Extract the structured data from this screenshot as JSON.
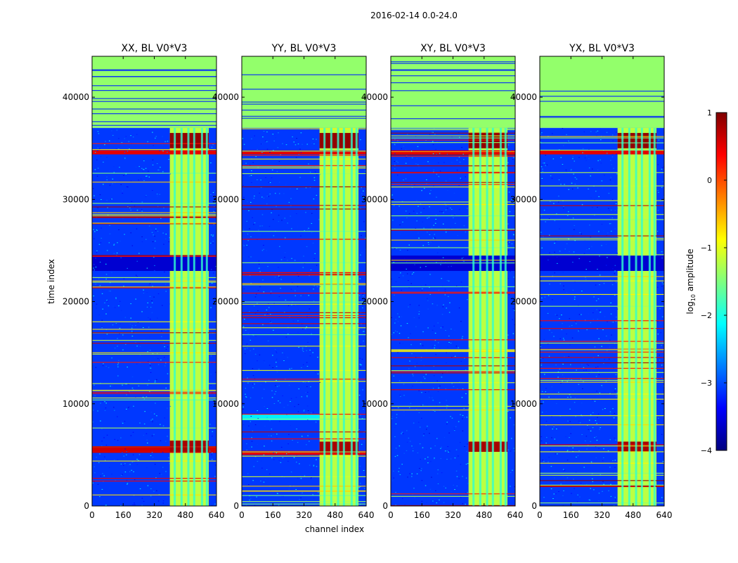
{
  "figure": {
    "suptitle": "2016-02-14 0.0-24.0",
    "xlabel": "channel index",
    "ylabel": "time index"
  },
  "colorbar": {
    "label": "log10 amplitude",
    "label_base": "log",
    "label_sub": "10",
    "label_rest": " amplitude",
    "min": -4,
    "max": 1,
    "ticks": [
      1,
      0,
      -1,
      -2,
      -3,
      -4
    ],
    "tick_labels": [
      "1",
      "0",
      "−1",
      "−2",
      "−3",
      "−4"
    ],
    "colormap": "jet",
    "colors": [
      "#00007f",
      "#0000ff",
      "#007fff",
      "#00ffff",
      "#7fff7f",
      "#ffff00",
      "#ff7f00",
      "#ff0000",
      "#7f0000"
    ]
  },
  "chart_data": [
    {
      "type": "heatmap",
      "title": "XX, BL V0*V3",
      "xlim": [
        0,
        640
      ],
      "ylim": [
        0,
        44000
      ],
      "xticks": [
        0,
        160,
        320,
        480,
        640
      ],
      "xtick_labels": [
        "0",
        "160",
        "320",
        "480",
        "640"
      ],
      "yticks": [
        0,
        10000,
        20000,
        30000,
        40000
      ],
      "ytick_labels": [
        "0",
        "10000",
        "20000",
        "30000",
        "40000"
      ],
      "value_range": [
        -4,
        1
      ],
      "regions": [
        {
          "channels": [
            0,
            640
          ],
          "times": [
            0,
            37000
          ],
          "level": -3.1
        },
        {
          "channels": [
            0,
            640
          ],
          "times": [
            37000,
            44000
          ],
          "level": -1.4
        },
        {
          "channels": [
            400,
            600
          ],
          "times": [
            0,
            37000
          ],
          "level": -1.2
        },
        {
          "channels": [
            0,
            640
          ],
          "times": [
            5200,
            5800
          ],
          "level": 0.6
        },
        {
          "channels": [
            400,
            600
          ],
          "times": [
            5300,
            6400
          ],
          "level": 0.8
        },
        {
          "channels": [
            400,
            600
          ],
          "times": [
            35000,
            36500
          ],
          "level": 0.9
        },
        {
          "channels": [
            0,
            640
          ],
          "times": [
            23000,
            24500
          ],
          "level": -3.6
        },
        {
          "channels": [
            0,
            640
          ],
          "times": [
            34400,
            34800
          ],
          "level": 0.5
        }
      ]
    },
    {
      "type": "heatmap",
      "title": "YY, BL V0*V3",
      "xlim": [
        0,
        640
      ],
      "ylim": [
        0,
        44000
      ],
      "xticks": [
        0,
        160,
        320,
        480,
        640
      ],
      "xtick_labels": [
        "0",
        "160",
        "320",
        "480",
        "640"
      ],
      "yticks": [
        0,
        10000,
        20000,
        30000,
        40000
      ],
      "ytick_labels": [
        "0",
        "10000",
        "20000",
        "30000",
        "40000"
      ],
      "value_range": [
        -4,
        1
      ],
      "regions": [
        {
          "channels": [
            0,
            640
          ],
          "times": [
            0,
            37000
          ],
          "level": -3.1
        },
        {
          "channels": [
            0,
            640
          ],
          "times": [
            37000,
            44000
          ],
          "level": -1.4
        },
        {
          "channels": [
            400,
            600
          ],
          "times": [
            0,
            37000
          ],
          "level": -1.2
        },
        {
          "channels": [
            0,
            640
          ],
          "times": [
            5000,
            5400
          ],
          "level": 0.5
        },
        {
          "channels": [
            400,
            600
          ],
          "times": [
            5200,
            6300
          ],
          "level": 0.8
        },
        {
          "channels": [
            400,
            600
          ],
          "times": [
            35000,
            36500
          ],
          "level": 0.9
        },
        {
          "channels": [
            0,
            400
          ],
          "times": [
            8400,
            9000
          ],
          "level": -2.2
        },
        {
          "channels": [
            0,
            640
          ],
          "times": [
            34400,
            34800
          ],
          "level": 0.5
        }
      ]
    },
    {
      "type": "heatmap",
      "title": "XY, BL V0*V3",
      "xlim": [
        0,
        640
      ],
      "ylim": [
        0,
        44000
      ],
      "xticks": [
        0,
        160,
        320,
        480,
        640
      ],
      "xtick_labels": [
        "0",
        "160",
        "320",
        "480",
        "640"
      ],
      "yticks": [
        0,
        10000,
        20000,
        30000,
        40000
      ],
      "ytick_labels": [
        "0",
        "10000",
        "20000",
        "30000",
        "40000"
      ],
      "value_range": [
        -4,
        1
      ],
      "regions": [
        {
          "channels": [
            0,
            640
          ],
          "times": [
            0,
            37000
          ],
          "level": -3.1
        },
        {
          "channels": [
            0,
            640
          ],
          "times": [
            37000,
            44000
          ],
          "level": -1.4
        },
        {
          "channels": [
            400,
            600
          ],
          "times": [
            0,
            37000
          ],
          "level": -1.2
        },
        {
          "channels": [
            400,
            600
          ],
          "times": [
            5300,
            6300
          ],
          "level": 0.8
        },
        {
          "channels": [
            400,
            600
          ],
          "times": [
            35000,
            36500
          ],
          "level": 0.9
        },
        {
          "channels": [
            0,
            640
          ],
          "times": [
            23000,
            24500
          ],
          "level": -3.6
        },
        {
          "channels": [
            0,
            640
          ],
          "times": [
            34400,
            34800
          ],
          "level": 0.5
        }
      ]
    },
    {
      "type": "heatmap",
      "title": "YX, BL V0*V3",
      "xlim": [
        0,
        640
      ],
      "ylim": [
        0,
        44000
      ],
      "xticks": [
        0,
        160,
        320,
        480,
        640
      ],
      "xtick_labels": [
        "0",
        "160",
        "320",
        "480",
        "640"
      ],
      "yticks": [
        0,
        10000,
        20000,
        30000,
        40000
      ],
      "ytick_labels": [
        "0",
        "10000",
        "20000",
        "30000",
        "40000"
      ],
      "value_range": [
        -4,
        1
      ],
      "regions": [
        {
          "channels": [
            0,
            640
          ],
          "times": [
            0,
            37000
          ],
          "level": -3.1
        },
        {
          "channels": [
            0,
            640
          ],
          "times": [
            37000,
            44000
          ],
          "level": -1.4
        },
        {
          "channels": [
            400,
            600
          ],
          "times": [
            0,
            37000
          ],
          "level": -1.2
        },
        {
          "channels": [
            400,
            600
          ],
          "times": [
            5300,
            6300
          ],
          "level": 0.8
        },
        {
          "channels": [
            400,
            600
          ],
          "times": [
            35000,
            36500
          ],
          "level": 0.9
        },
        {
          "channels": [
            0,
            640
          ],
          "times": [
            23000,
            24500
          ],
          "level": -3.6
        },
        {
          "channels": [
            0,
            640
          ],
          "times": [
            34400,
            34800
          ],
          "level": 0.5
        }
      ]
    }
  ]
}
